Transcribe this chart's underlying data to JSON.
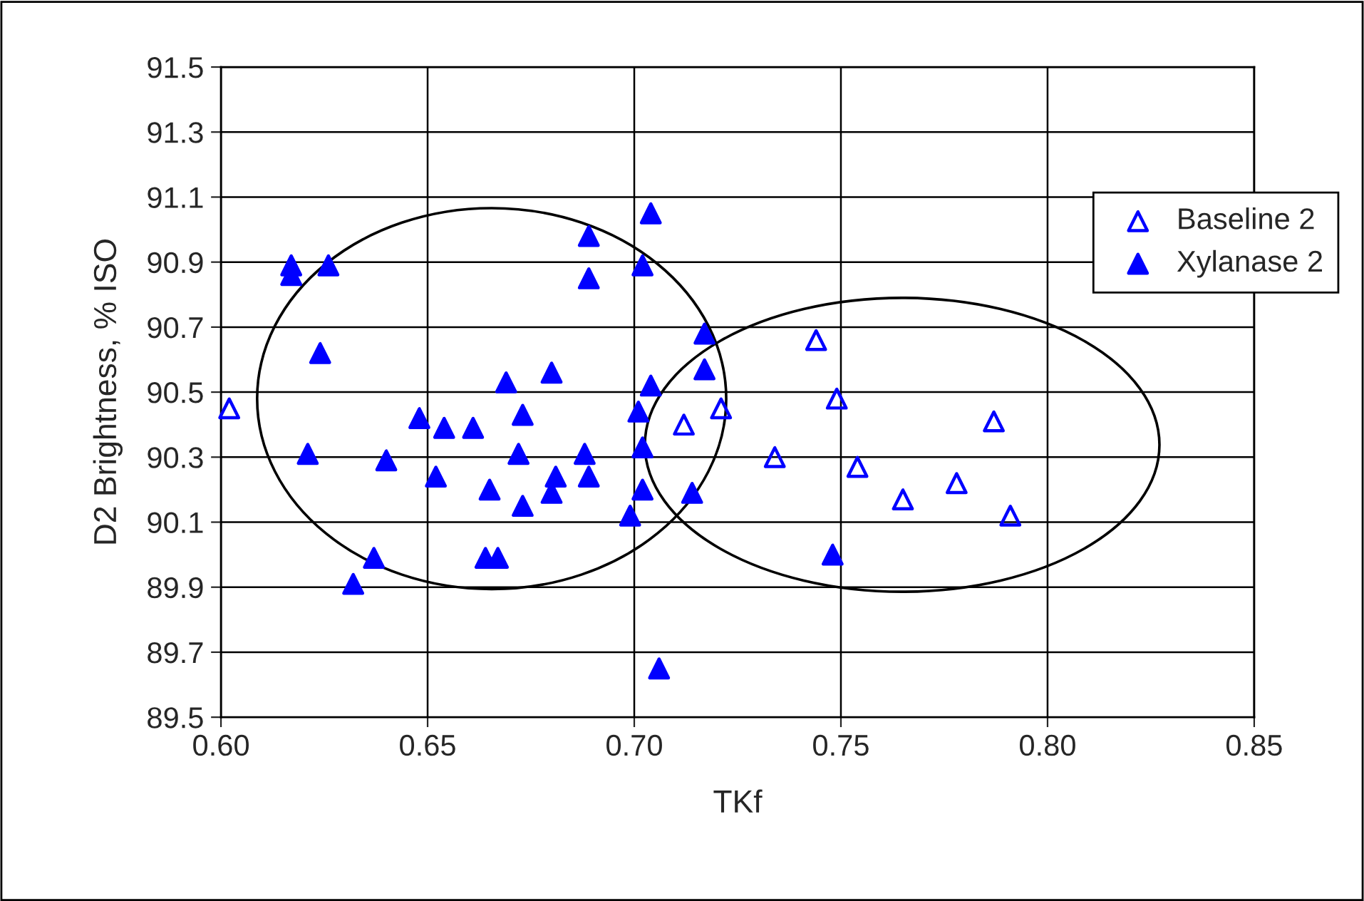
{
  "chart_data": {
    "type": "scatter",
    "xlabel": "TKf",
    "ylabel": "D2 Brightness, % ISO",
    "xlim": [
      0.6,
      0.85
    ],
    "xticks": [
      {
        "value": 0.6,
        "label": "0.60"
      },
      {
        "value": 0.65,
        "label": "0.65"
      },
      {
        "value": 0.7,
        "label": "0.70"
      },
      {
        "value": 0.75,
        "label": "0.75"
      },
      {
        "value": 0.8,
        "label": "0.80"
      },
      {
        "value": 0.85,
        "label": "0.85"
      }
    ],
    "ylim": [
      89.5,
      91.5
    ],
    "yticks": [
      89.5,
      89.7,
      89.9,
      90.1,
      90.3,
      90.5,
      90.7,
      90.9,
      91.1,
      91.3,
      91.5
    ],
    "grid": true,
    "legend": "right",
    "marker": "triangle",
    "series": [
      {
        "name": "Baseline 2",
        "color": "#0000ff",
        "x": [
          0.602,
          0.712,
          0.721,
          0.744,
          0.749,
          0.734,
          0.754,
          0.765,
          0.778,
          0.787,
          0.791
        ],
        "values": [
          90.45,
          90.4,
          90.45,
          90.66,
          90.48,
          90.3,
          90.27,
          90.17,
          90.22,
          90.41,
          90.12
        ]
      },
      {
        "name": "Xylanase 2",
        "color": "#0000ff",
        "x": [
          0.617,
          0.617,
          0.626,
          0.624,
          0.621,
          0.64,
          0.637,
          0.632,
          0.648,
          0.654,
          0.661,
          0.652,
          0.669,
          0.68,
          0.673,
          0.672,
          0.665,
          0.673,
          0.681,
          0.68,
          0.664,
          0.667,
          0.704,
          0.689,
          0.702,
          0.689,
          0.717,
          0.717,
          0.704,
          0.701,
          0.702,
          0.688,
          0.689,
          0.702,
          0.699,
          0.714,
          0.706,
          0.748
        ],
        "values": [
          90.89,
          90.86,
          90.89,
          90.62,
          90.31,
          90.29,
          89.99,
          89.91,
          90.42,
          90.39,
          90.39,
          90.24,
          90.53,
          90.56,
          90.43,
          90.31,
          90.2,
          90.15,
          90.24,
          90.19,
          89.99,
          89.99,
          91.05,
          90.98,
          90.89,
          90.85,
          90.68,
          90.57,
          90.52,
          90.44,
          90.33,
          90.31,
          90.24,
          90.2,
          90.12,
          90.19,
          89.65,
          90.0
        ]
      }
    ]
  }
}
